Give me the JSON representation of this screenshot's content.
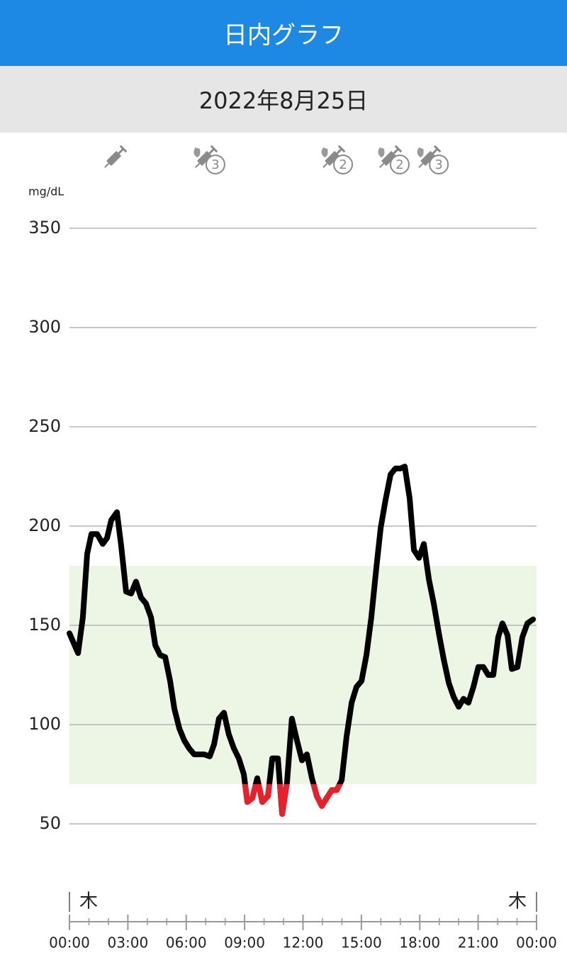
{
  "header": {
    "title": "日内グラフ",
    "date": "2022年8月25日"
  },
  "chart_data": {
    "type": "line",
    "y_unit": "mg/dL",
    "xlim": [
      0,
      24
    ],
    "xticks": [
      {
        "value": 0,
        "label": "00:00"
      },
      {
        "value": 3,
        "label": "03:00"
      },
      {
        "value": 6,
        "label": "06:00"
      },
      {
        "value": 9,
        "label": "09:00"
      },
      {
        "value": 12,
        "label": "12:00"
      },
      {
        "value": 15,
        "label": "15:00"
      },
      {
        "value": 18,
        "label": "18:00"
      },
      {
        "value": 21,
        "label": "21:00"
      },
      {
        "value": 24,
        "label": "00:00"
      }
    ],
    "xminorticks": [
      1,
      2,
      4,
      5,
      7,
      8,
      10,
      11,
      13,
      14,
      16,
      17,
      19,
      20,
      22,
      23
    ],
    "day_labels": [
      "木",
      "木"
    ],
    "ylim": [
      50,
      350
    ],
    "yticks": [
      50,
      100,
      150,
      200,
      250,
      300,
      350
    ],
    "grid": true,
    "target_range": [
      70,
      180
    ],
    "target_color": "#edf5e4",
    "color": "#000000",
    "low_color": "#e8202a",
    "events": [
      {
        "x": 2.33
      },
      {
        "x": 6.99,
        "label": "3"
      },
      {
        "x": 13.55,
        "label": "2"
      },
      {
        "x": 16.46,
        "label": "2"
      },
      {
        "x": 18.47,
        "label": "3"
      }
    ],
    "x": [
      0,
      0.44,
      0.69,
      0.91,
      1.13,
      1.42,
      1.71,
      1.93,
      2.15,
      2.44,
      2.66,
      2.91,
      3.17,
      3.42,
      3.68,
      3.93,
      4.19,
      4.41,
      4.66,
      4.92,
      5.17,
      5.39,
      5.65,
      5.9,
      6.15,
      6.41,
      6.92,
      7.21,
      7.43,
      7.68,
      7.94,
      8.19,
      8.45,
      8.7,
      8.96,
      9.14,
      9.4,
      9.65,
      9.91,
      10.2,
      10.42,
      10.71,
      10.93,
      11.18,
      11.43,
      11.69,
      11.95,
      12.2,
      12.46,
      12.71,
      12.97,
      13.22,
      13.48,
      13.73,
      13.99,
      14.24,
      14.5,
      14.75,
      15.01,
      15.26,
      15.51,
      15.77,
      15.99,
      16.24,
      16.5,
      16.75,
      17.01,
      17.23,
      17.48,
      17.7,
      17.96,
      18.21,
      18.47,
      18.72,
      18.98,
      19.23,
      19.49,
      19.74,
      20,
      20.25,
      20.5,
      20.76,
      21.01,
      21.27,
      21.52,
      21.78,
      22.03,
      22.25,
      22.51,
      22.73,
      23.02,
      23.27,
      23.53,
      23.82
    ],
    "values": [
      146,
      136,
      154,
      186,
      196,
      196,
      191,
      194,
      203,
      207,
      190,
      167,
      166,
      172,
      164,
      161,
      154,
      140,
      135,
      134,
      122,
      108,
      98,
      92,
      88,
      85,
      85,
      84,
      90,
      103,
      106,
      95,
      88,
      83,
      75,
      61,
      63,
      73,
      61,
      64,
      83,
      83,
      55,
      71,
      103,
      92,
      82,
      85,
      73,
      64,
      59,
      63,
      67,
      67,
      72,
      94,
      111,
      119,
      122,
      135,
      154,
      179,
      199,
      213,
      226,
      229,
      229,
      230,
      214,
      188,
      184,
      191,
      173,
      161,
      146,
      133,
      121,
      114,
      109,
      113,
      111,
      119,
      129,
      129,
      125,
      125,
      144,
      151,
      145,
      128,
      129,
      144,
      151,
      153
    ]
  }
}
